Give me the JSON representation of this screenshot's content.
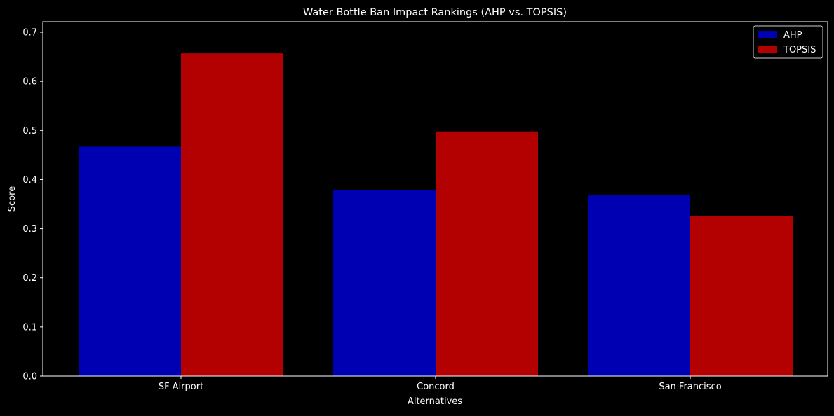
{
  "chart_data": {
    "type": "bar",
    "title": "Water Bottle Ban Impact Rankings (AHP vs. TOPSIS)",
    "xlabel": "Alternatives",
    "ylabel": "Score",
    "categories": [
      "SF Airport",
      "Concord",
      "San Francisco"
    ],
    "series": [
      {
        "name": "AHP",
        "values": [
          0.467,
          0.379,
          0.369
        ],
        "color": "#0000b3"
      },
      {
        "name": "TOPSIS",
        "values": [
          0.657,
          0.498,
          0.326
        ],
        "color": "#b30000"
      }
    ],
    "ylim": [
      0,
      0.72
    ],
    "yticks": [
      "0.0",
      "0.1",
      "0.2",
      "0.3",
      "0.4",
      "0.5",
      "0.6",
      "0.7"
    ],
    "grid": false,
    "legend": "top-right",
    "background": "#000000"
  }
}
